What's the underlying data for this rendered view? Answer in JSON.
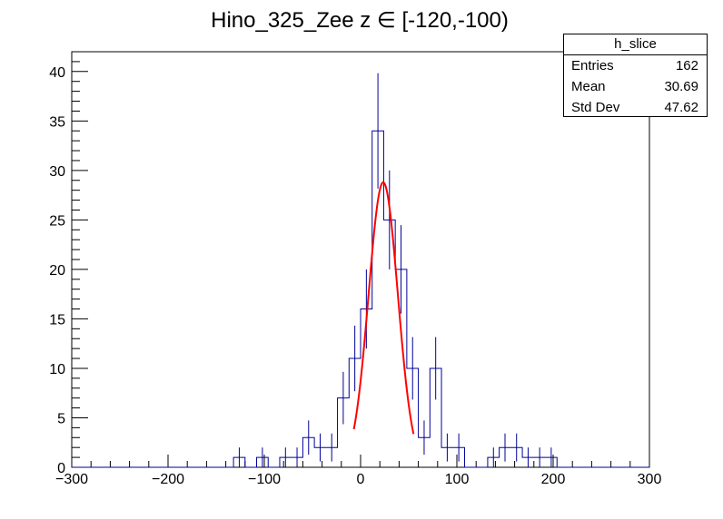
{
  "chart_data": {
    "type": "histogram",
    "title": "Hino_325_Zee z  ∈ [-120,-100)",
    "xlabel": "",
    "ylabel": "",
    "xlim": [
      -300,
      300
    ],
    "ylim": [
      0,
      42
    ],
    "x_ticks": [
      -300,
      -200,
      -100,
      0,
      100,
      200,
      300
    ],
    "y_ticks": [
      0,
      5,
      10,
      15,
      20,
      25,
      30,
      35,
      40
    ],
    "x_tick_labels": [
      "−300",
      "−200",
      "−100",
      "0",
      "100",
      "200",
      "300"
    ],
    "y_tick_labels": [
      "0",
      "5",
      "10",
      "15",
      "20",
      "25",
      "30",
      "35",
      "40"
    ],
    "bin_width": 12,
    "bin_edges_start": -300,
    "counts": [
      0,
      0,
      0,
      0,
      0,
      0,
      0,
      0,
      0,
      0,
      0,
      0,
      0,
      0,
      1,
      0,
      1,
      0,
      1,
      1,
      3,
      2,
      2,
      7,
      11,
      16,
      34,
      25,
      20,
      10,
      3,
      10,
      2,
      2,
      0,
      0,
      1,
      2,
      2,
      1,
      1,
      1,
      0,
      0,
      0,
      0,
      0,
      0,
      0,
      0
    ],
    "fit": {
      "type": "gaussian",
      "constant": 28.8,
      "mean": 23.5,
      "sigma": 15.2,
      "range": [
        -7,
        55
      ],
      "color": "#ff0000"
    },
    "histogram_color": "#000099",
    "grid": false,
    "stats": {
      "name": "h_slice",
      "rows": [
        {
          "label": "Entries",
          "value": "162"
        },
        {
          "label": "Mean",
          "value": "30.69"
        },
        {
          "label": "Std Dev",
          "value": "47.62"
        }
      ]
    }
  }
}
